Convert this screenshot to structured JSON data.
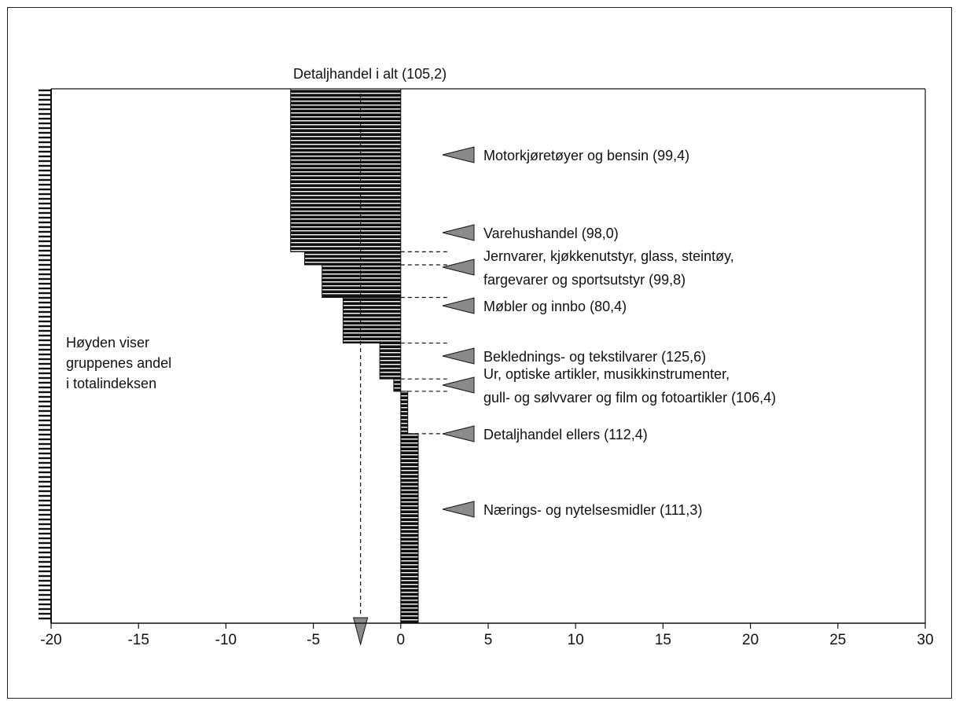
{
  "chart_data": {
    "type": "bar",
    "orientation": "horizontal",
    "title": "Detaljhandel i alt (105,2)",
    "xlabel": "",
    "ylabel": "",
    "xlim": [
      -20,
      30
    ],
    "xticks": [
      "-20",
      "-15",
      "-10",
      "-5",
      "0",
      "5",
      "10",
      "15",
      "20",
      "25",
      "30"
    ],
    "total_marker_value": -2.3,
    "note_lines": [
      "Høyden viser",
      "gruppenes andel",
      "i totalindeksen"
    ],
    "series": [
      {
        "name": "Motorkjøretøyer og bensin (99,4)",
        "value": -6.3,
        "share": 0.305,
        "label_lines": [
          "Motorkjøretøyer og bensin (99,4)"
        ]
      },
      {
        "name": "Varehushandel (98,0)",
        "value": -5.5,
        "share": 0.0244,
        "label_lines": [
          "Varehushandel (98,0)"
        ]
      },
      {
        "name": "Jernvarer, kjøkkenutstyr, glass, steintøy, fargevarer og sportsutstyr (99,8)",
        "value": -4.5,
        "share": 0.061,
        "label_lines": [
          "Jernvarer, kjøkkenutstyr, glass, steintøy,",
          "fargevarer og sportsutstyr (99,8)"
        ]
      },
      {
        "name": "Møbler og innbo (80,4)",
        "value": -3.3,
        "share": 0.0854,
        "label_lines": [
          "Møbler og innbo (80,4)"
        ]
      },
      {
        "name": "Beklednings- og tekstilvarer (125,6)",
        "value": -1.2,
        "share": 0.0671,
        "label_lines": [
          "Beklednings- og  tekstilvarer (125,6)"
        ]
      },
      {
        "name": "Ur, optiske artikler, musikkinstrumenter, gull- og sølvvarer og film og fotoartikler (106,4)",
        "value": -0.4,
        "share": 0.0232,
        "label_lines": [
          "Ur, optiske  artikler, musikkinstrumenter,",
          "gull- og sølvvarer og film og  fotoartikler (106,4)"
        ]
      },
      {
        "name": "Detaljhandel ellers (112,4)",
        "value": 0.4,
        "share": 0.0793,
        "label_lines": [
          "Detaljhandel ellers (112,4)"
        ]
      },
      {
        "name": "Nærings- og nytelsesmidler (111,3)",
        "value": 1.0,
        "share": 0.3543,
        "label_lines": [
          "Nærings- og nytelsesmidler (111,3)"
        ]
      }
    ],
    "colors": {
      "bar": "#111111",
      "stripe": "#ffffff",
      "arrow": "#8a8a8a",
      "axis": "#111111"
    }
  }
}
